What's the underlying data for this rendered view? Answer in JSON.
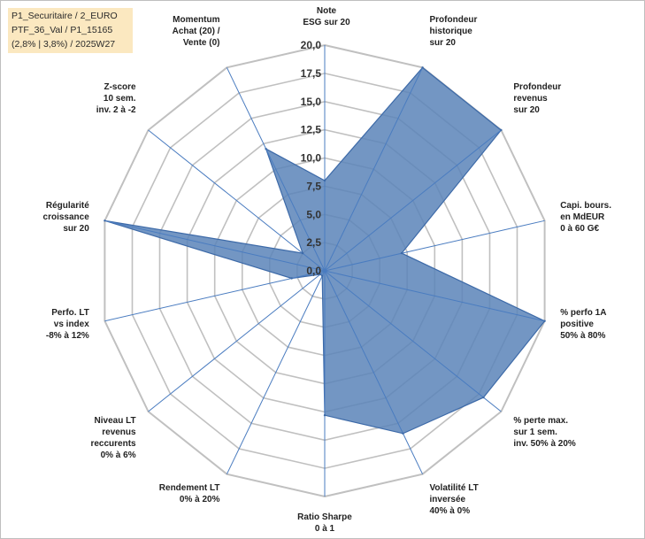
{
  "info": {
    "line1": "P1_Securitaire / 2_EURO",
    "line2": "PTF_36_Val / P1_15165",
    "line3": "(2,8% | 3,8%) / 2025W27"
  },
  "chart_data": {
    "type": "radar",
    "title": "",
    "categories": [
      [
        "Note",
        "ESG sur 20"
      ],
      [
        "Profondeur",
        "historique",
        "sur 20"
      ],
      [
        "Profondeur",
        "revenus",
        "sur 20"
      ],
      [
        "Capi. bours.",
        "en MdEUR",
        "0 à 60 G€"
      ],
      [
        "% perfo 1A",
        "positive",
        "50% à 80%"
      ],
      [
        "% perte max.",
        "sur 1 sem.",
        "inv. 50% à 20%"
      ],
      [
        "Volatilité LT",
        "inversée",
        "40% à 0%"
      ],
      [
        "Ratio Sharpe",
        "0 à 1"
      ],
      [
        "Rendement LT",
        "0% à 20%"
      ],
      [
        "Niveau LT",
        "revenus",
        "reccurents",
        "0% à 6%"
      ],
      [
        "Perfo. LT",
        "vs index",
        "-8% à 12%"
      ],
      [
        "Régularité",
        "croissance",
        "sur 20"
      ],
      [
        "Z-score",
        "10 sem.",
        "inv. 2 à -2"
      ],
      [
        "Momentum",
        "Achat (20) /",
        "Vente (0)"
      ]
    ],
    "values": [
      8,
      20,
      20,
      7,
      20,
      18,
      16,
      12.8,
      0.5,
      0.5,
      3,
      20,
      2.5,
      12
    ],
    "rlim": [
      0,
      20
    ],
    "ticks": [
      "0,0",
      "2,5",
      "5,0",
      "7,5",
      "10,0",
      "12,5",
      "15,0",
      "17,5",
      "20,0"
    ],
    "grid": true,
    "colors": {
      "fill": "#5b84b8",
      "stroke": "#3d6aa8",
      "grid": "#c0c0c0",
      "spoke": "#4a7cc0"
    }
  }
}
